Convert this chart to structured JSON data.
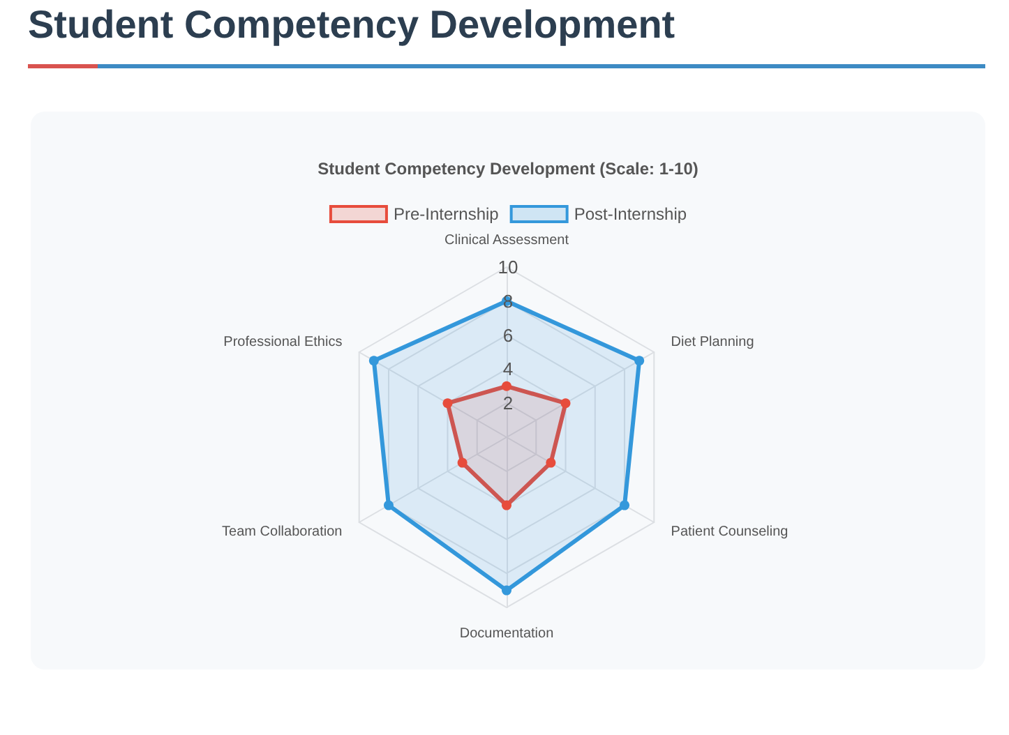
{
  "chart_data": {
    "type": "radar",
    "title": "Student Competency Development",
    "subtitle": "Student Competency Development (Scale: 1-10)",
    "categories": [
      "Clinical Assessment",
      "Diet Planning",
      "Patient Counseling",
      "Documentation",
      "Team Collaboration",
      "Professional Ethics"
    ],
    "series": [
      {
        "name": "Pre-Internship",
        "color": "#e74c3c",
        "values": [
          3,
          4,
          3,
          4,
          3,
          4
        ]
      },
      {
        "name": "Post-Internship",
        "color": "#3498db",
        "values": [
          8,
          9,
          8,
          9,
          8,
          9
        ]
      }
    ],
    "ylim": [
      0,
      10
    ],
    "yticks": [
      2,
      4,
      6,
      8,
      10
    ],
    "grid": true,
    "legend": "top",
    "marker": "circle",
    "line_style": "solid"
  }
}
